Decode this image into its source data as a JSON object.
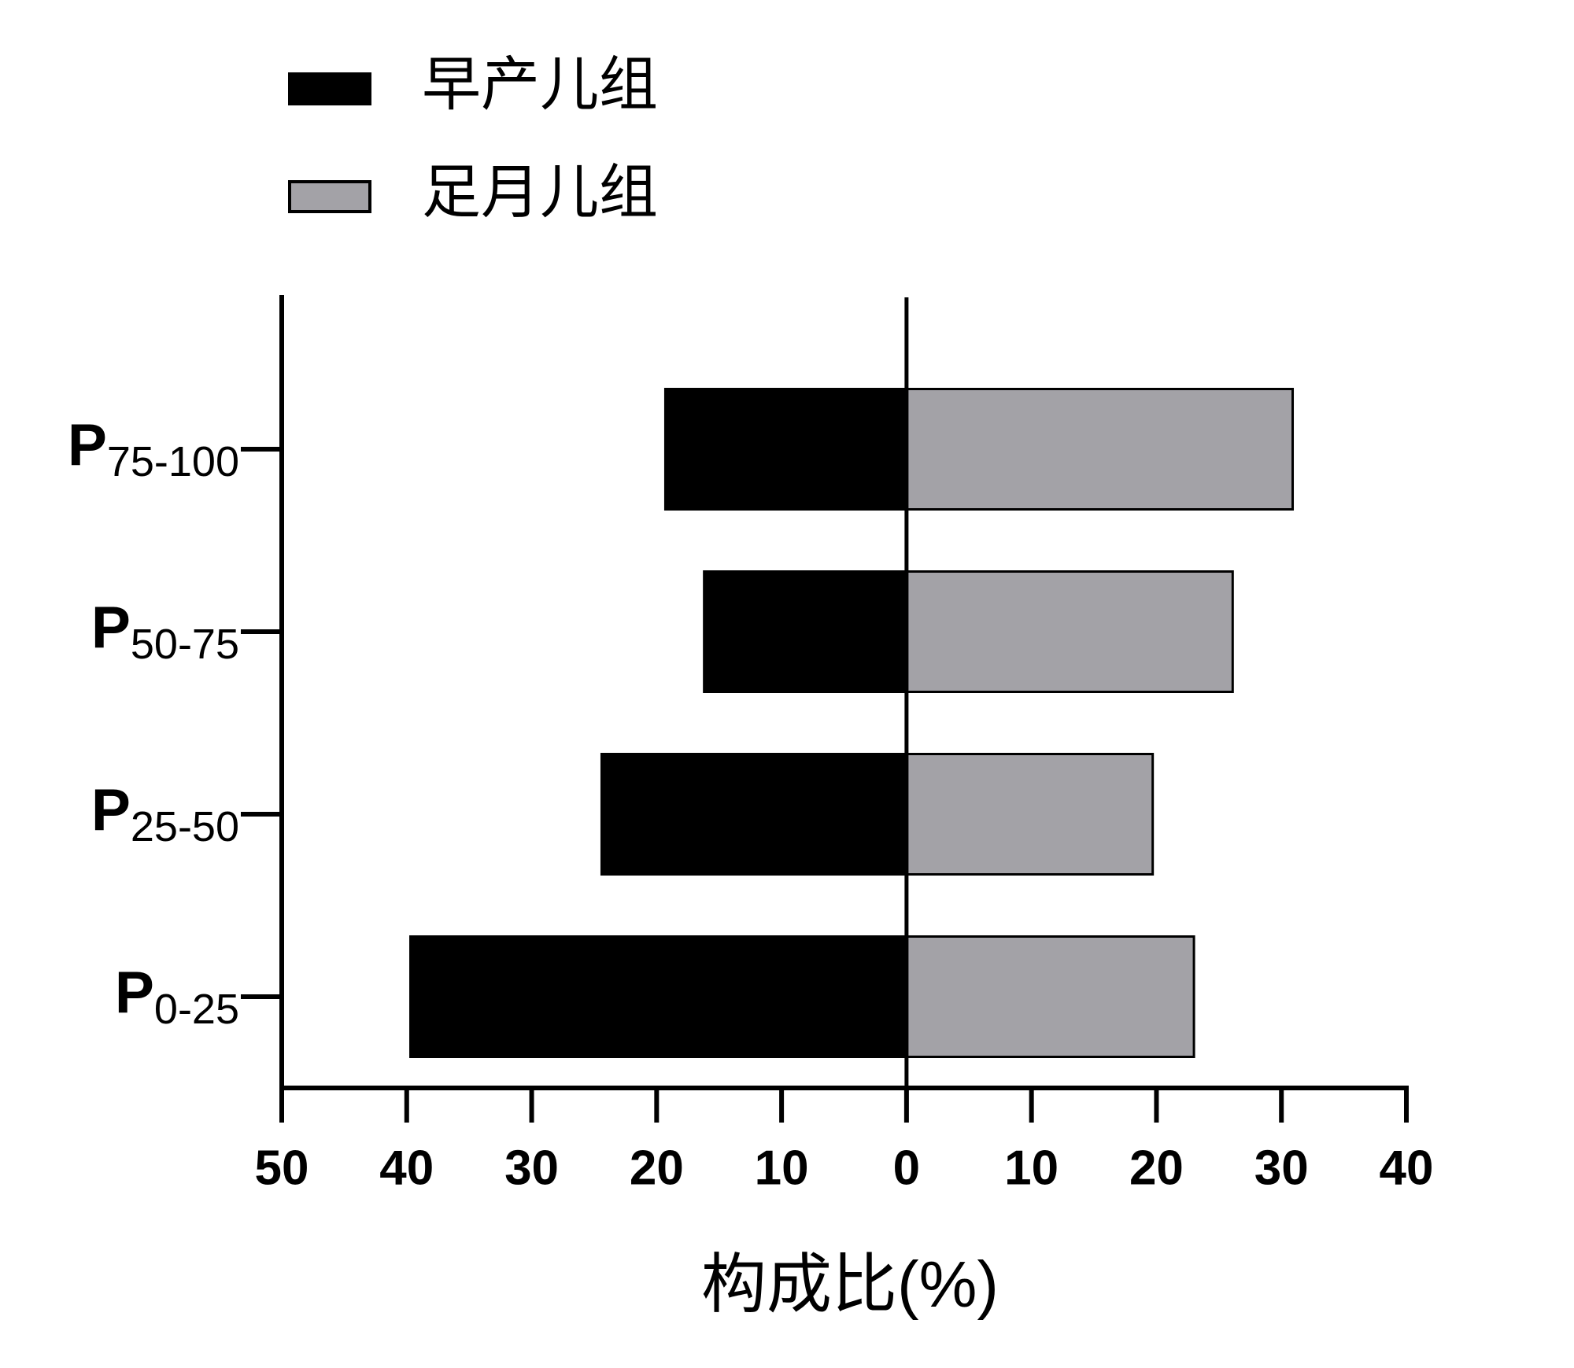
{
  "chart_data": {
    "type": "bar",
    "orientation": "horizontal",
    "diverging": true,
    "xlabel": "构成比(%)",
    "categories": [
      "P75-100",
      "P50-75",
      "P25-50",
      "P0-25"
    ],
    "series": [
      {
        "name": "早产儿组",
        "color": "#000000",
        "values": [
          -19.3,
          -16.2,
          -24.4,
          -39.7
        ]
      },
      {
        "name": "足月儿组",
        "color": "#a3a2a7",
        "values": [
          30.9,
          26.1,
          19.7,
          23.0
        ]
      }
    ],
    "xlim": [
      -50,
      40
    ],
    "xticks": [
      {
        "value": -50,
        "label": "50"
      },
      {
        "value": -40,
        "label": "40"
      },
      {
        "value": -30,
        "label": "30"
      },
      {
        "value": -20,
        "label": "20"
      },
      {
        "value": -10,
        "label": "10"
      },
      0,
      10,
      20,
      30,
      40
    ],
    "legend": "top-left"
  }
}
